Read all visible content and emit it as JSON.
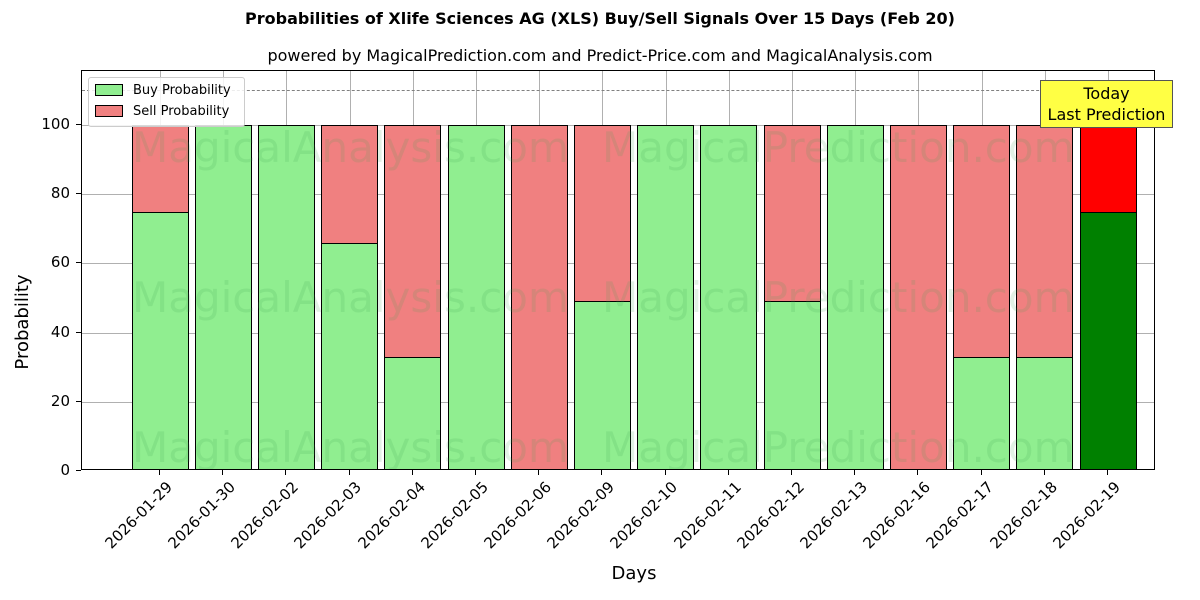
{
  "chart_data": {
    "type": "bar",
    "stacked": true,
    "title": "Probabilities of Xlife Sciences AG (XLS) Buy/Sell Signals Over 15 Days (Feb 20)",
    "subtitle": "powered by MagicalPrediction.com and Predict-Price.com and MagicalAnalysis.com",
    "xlabel": "Days",
    "ylabel": "Probability",
    "ylim": [
      0,
      115
    ],
    "yticks": [
      0,
      20,
      40,
      60,
      80,
      100
    ],
    "grid": true,
    "reference_line": {
      "y": 110,
      "style": "dashed",
      "color": "#808080"
    },
    "legend_position": "upper left",
    "categories": [
      "2026-01-29",
      "2026-01-30",
      "2026-02-02",
      "2026-02-03",
      "2026-02-04",
      "2026-02-05",
      "2026-02-06",
      "2026-02-09",
      "2026-02-10",
      "2026-02-11",
      "2026-02-12",
      "2026-02-13",
      "2026-02-16",
      "2026-02-17",
      "2026-02-18",
      "2026-02-19"
    ],
    "series": [
      {
        "name": "Buy Probability",
        "color": "#90ee90",
        "values": [
          75,
          100,
          100,
          66,
          33,
          100,
          0,
          49,
          100,
          100,
          49,
          100,
          0,
          33,
          33,
          75
        ]
      },
      {
        "name": "Sell Probability",
        "color": "#f08080",
        "values": [
          25,
          0,
          0,
          34,
          67,
          0,
          100,
          51,
          0,
          0,
          51,
          0,
          100,
          67,
          67,
          25
        ]
      }
    ],
    "highlight": {
      "index": 15,
      "buy_color": "#008000",
      "sell_color": "#ff0000",
      "annotation": "Today\nLast Prediction",
      "annotation_bg": "#ffff44"
    },
    "watermarks": [
      "MagicalAnalysis.com",
      "MagicalPrediction.com"
    ]
  },
  "legend": {
    "buy": "Buy Probability",
    "sell": "Sell Probability"
  },
  "annotation": {
    "line1": "Today",
    "line2": "Last Prediction"
  }
}
